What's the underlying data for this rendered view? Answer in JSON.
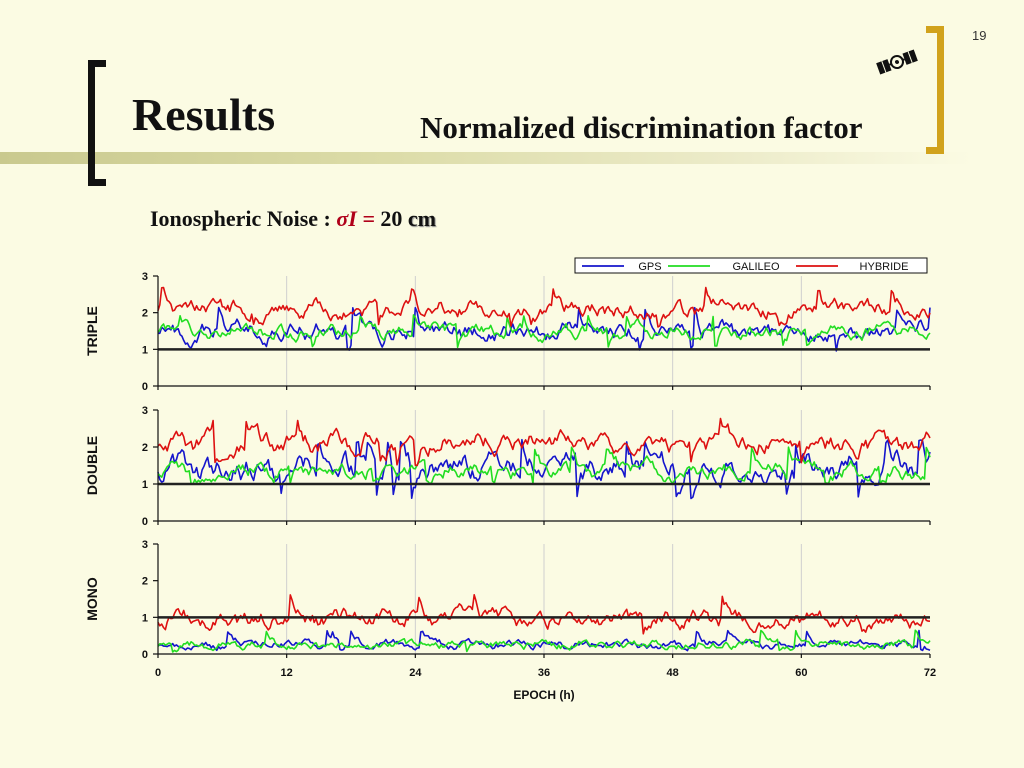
{
  "slide": {
    "number": "19",
    "title": "Results",
    "subtitle": "Normalized discrimination factor",
    "noise_label": "Ionospheric Noise : ",
    "noise_symbol": "σI",
    "noise_equals": " = ",
    "noise_value": "20",
    "noise_unit": "cm",
    "icon": "satellite-icon"
  },
  "colors": {
    "background": "#fbfbe3",
    "gps": "#1515cc",
    "galileo": "#22dd22",
    "hybride": "#dd1111",
    "threshold": "#222222",
    "bracket_left": "#111111",
    "bracket_right": "#d1a21c"
  },
  "chart_data": {
    "type": "line",
    "xlabel": "EPOCH (h)",
    "x_range": [
      0,
      72
    ],
    "x_ticks": [
      "0",
      "12",
      "24",
      "36",
      "48",
      "60",
      "72"
    ],
    "legend": [
      "GPS",
      "GALILEO",
      "HYBRIDE"
    ],
    "legend_position": "top-right",
    "grid": "vertical",
    "threshold": 1,
    "panels": [
      {
        "name": "TRIPLE",
        "ylim": [
          0,
          3
        ],
        "y_ticks": [
          "0",
          "1",
          "2",
          "3"
        ],
        "series": [
          {
            "name": "GPS",
            "mean": 1.5,
            "min": 0.95,
            "max": 2.15
          },
          {
            "name": "GALILEO",
            "mean": 1.5,
            "min": 1.05,
            "max": 1.95
          },
          {
            "name": "HYBRIDE",
            "mean": 2.1,
            "min": 1.6,
            "max": 2.7
          }
        ]
      },
      {
        "name": "DOUBLE",
        "ylim": [
          0,
          3
        ],
        "y_ticks": [
          "0",
          "1",
          "2",
          "3"
        ],
        "series": [
          {
            "name": "GPS",
            "mean": 1.45,
            "min": 0.6,
            "max": 2.2
          },
          {
            "name": "GALILEO",
            "mean": 1.35,
            "min": 1.0,
            "max": 2.0
          },
          {
            "name": "HYBRIDE",
            "mean": 2.1,
            "min": 1.5,
            "max": 2.8
          }
        ]
      },
      {
        "name": "MONO",
        "ylim": [
          0,
          3
        ],
        "y_ticks": [
          "0",
          "1",
          "2",
          "3"
        ],
        "series": [
          {
            "name": "GPS",
            "mean": 0.25,
            "min": 0.08,
            "max": 0.65
          },
          {
            "name": "GALILEO",
            "mean": 0.25,
            "min": 0.05,
            "max": 0.65
          },
          {
            "name": "HYBRIDE",
            "mean": 0.95,
            "min": 0.55,
            "max": 1.65
          }
        ]
      }
    ]
  }
}
